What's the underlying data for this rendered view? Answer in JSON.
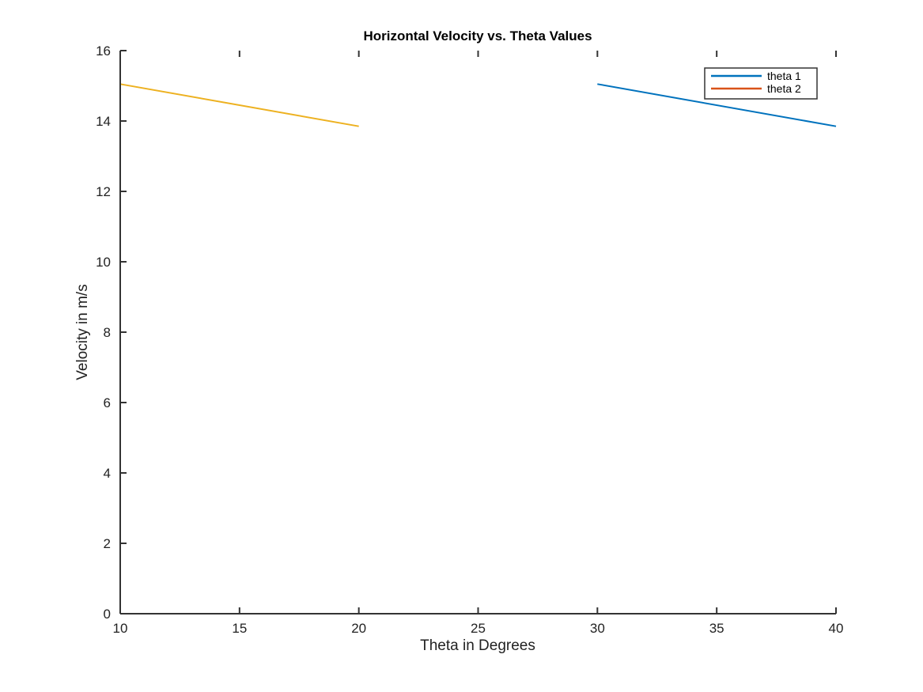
{
  "chart_data": {
    "type": "line",
    "title": "Horizontal Velocity vs. Theta Values",
    "xlabel": "Theta in Degrees",
    "ylabel": "Velocity in m/s",
    "xlim": [
      10,
      40
    ],
    "ylim": [
      0,
      16
    ],
    "x_ticks": [
      10,
      15,
      20,
      25,
      30,
      35,
      40
    ],
    "y_ticks": [
      0,
      2,
      4,
      6,
      8,
      10,
      12,
      14,
      16
    ],
    "grid": false,
    "legend_position": "top-right",
    "legend": [
      "theta 1",
      "theta 2"
    ],
    "series": [
      {
        "name": "theta 1",
        "color": "#0072BD",
        "x": [
          30,
          40
        ],
        "y": [
          15.05,
          13.85
        ]
      },
      {
        "name": "theta 2",
        "color": "#D95319",
        "x": [
          30,
          40
        ],
        "y": [
          0,
          0
        ]
      },
      {
        "color": "#EDB120",
        "x": [
          10,
          20
        ],
        "y": [
          15.05,
          13.85
        ]
      },
      {
        "color": "#7E2F8E",
        "x": [
          10,
          20
        ],
        "y": [
          0,
          0
        ]
      }
    ]
  }
}
